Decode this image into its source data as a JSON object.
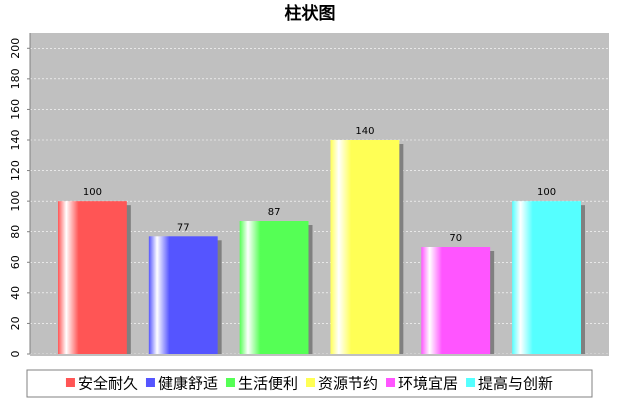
{
  "chart_data": {
    "type": "bar",
    "title": "柱状图",
    "categories": [
      null
    ],
    "series": [
      {
        "name": "安全耐久",
        "color": "#ff5555",
        "values": [
          100
        ]
      },
      {
        "name": "健康舒适",
        "color": "#5555ff",
        "values": [
          77
        ]
      },
      {
        "name": "生活便利",
        "color": "#55ff55",
        "values": [
          87
        ]
      },
      {
        "name": "资源节约",
        "color": "#ffff55",
        "values": [
          140
        ]
      },
      {
        "name": "环境宜居",
        "color": "#ff55ff",
        "values": [
          70
        ]
      },
      {
        "name": "提高与创新",
        "color": "#55ffff",
        "values": [
          100
        ]
      }
    ],
    "ylim": [
      0,
      210
    ],
    "yticks": [
      0,
      20,
      40,
      60,
      80,
      100,
      120,
      140,
      160,
      180,
      200
    ],
    "grid": true,
    "legend": "bottom"
  }
}
